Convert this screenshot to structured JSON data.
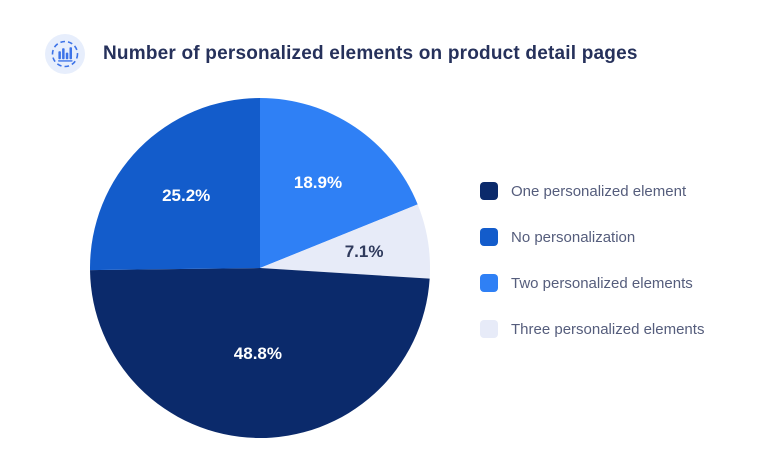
{
  "header": {
    "title": "Number of personalized elements on product detail pages",
    "icon": "bar-chart-badge-icon"
  },
  "colors": {
    "background": "#FFFFFF",
    "title_text": "#26315B",
    "legend_text": "#555D7C",
    "icon_badge_bg": "#E7EEFC",
    "icon_accent": "#3D73E8"
  },
  "chart_data": {
    "type": "pie",
    "title": "Number of personalized elements on product detail pages",
    "start_angle_deg": -90,
    "direction": "clockwise",
    "slices": [
      {
        "label": "Two personalized elements",
        "value": 18.9,
        "display": "18.9%",
        "color": "#2F80F5",
        "label_color": "#FFFFFF",
        "label_radius": 0.61
      },
      {
        "label": "Three personalized elements",
        "value": 7.1,
        "display": "7.1%",
        "color": "#E7EBF8",
        "label_color": "#2F3A5C",
        "label_radius": 0.62
      },
      {
        "label": "One personalized element",
        "value": 48.8,
        "display": "48.8%",
        "color": "#0B2A6B",
        "label_color": "#FFFFFF",
        "label_radius": 0.5
      },
      {
        "label": "No personalization",
        "value": 25.2,
        "display": "25.2%",
        "color": "#135CCB",
        "label_color": "#FFFFFF",
        "label_radius": 0.61
      }
    ],
    "legend": {
      "position": "right",
      "order": [
        "One personalized element",
        "No personalization",
        "Two personalized elements",
        "Three personalized elements"
      ]
    }
  }
}
